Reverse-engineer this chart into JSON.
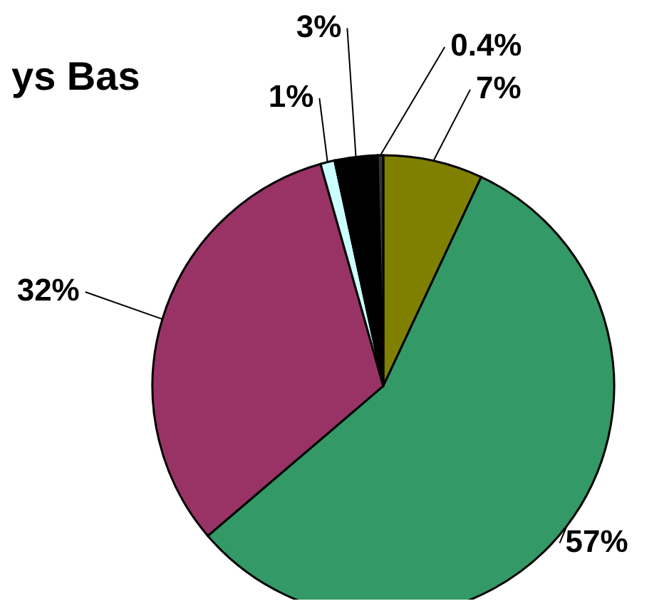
{
  "chart_data": {
    "type": "pie",
    "title": "ys Bas",
    "categories": [
      null,
      null,
      null,
      null,
      null,
      null
    ],
    "values": [
      7,
      57,
      32,
      1,
      3,
      0.4
    ],
    "colors": [
      "#808000",
      "#339966",
      "#993366",
      "#ccffff",
      "#000000",
      "#333333"
    ],
    "value_labels": [
      "7%",
      "57%",
      "32%",
      "1%",
      "3%",
      "0.4%"
    ]
  }
}
